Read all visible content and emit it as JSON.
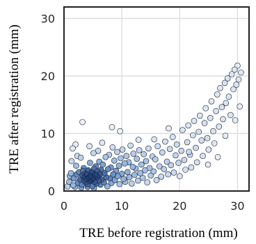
{
  "chart_data": {
    "type": "scatter",
    "title": "",
    "xlabel": "TRE before registration (mm)",
    "ylabel": "TRE after registration (mm)",
    "xlim": [
      0,
      32
    ],
    "ylim": [
      0,
      32
    ],
    "xticks": [
      0,
      10,
      20,
      30
    ],
    "yticks": [
      0,
      10,
      20,
      30
    ],
    "grid": true,
    "legend": "none",
    "marker_style": "open circles, density-shaded from white to dark blue",
    "colors": {
      "low_density": "#eef3fb",
      "mid_density": "#7ea6d8",
      "high_density": "#1d3f7a",
      "marker_edge": "#141a28",
      "frame": "#222222",
      "grid": "#dedede"
    },
    "series": [
      {
        "points": [
          [
            0.6,
            0.8
          ],
          [
            0.9,
            1.6
          ],
          [
            1.2,
            3.1
          ],
          [
            1.3,
            5.2
          ],
          [
            1.5,
            7.4
          ],
          [
            1.7,
            2.2
          ],
          [
            1.9,
            0.7
          ],
          [
            2.1,
            4.4
          ],
          [
            2.3,
            6.1
          ],
          [
            2.4,
            1.4
          ],
          [
            2.6,
            3.3
          ],
          [
            2.8,
            2.0
          ],
          [
            2.9,
            5.8
          ],
          [
            3.1,
            1.1
          ],
          [
            3.2,
            2.7
          ],
          [
            3.4,
            4.0
          ],
          [
            3.5,
            1.8
          ],
          [
            3.6,
            2.4
          ],
          [
            3.7,
            3.0
          ],
          [
            3.8,
            1.5
          ],
          [
            3.9,
            2.1
          ],
          [
            4.0,
            2.9
          ],
          [
            4.1,
            1.2
          ],
          [
            4.2,
            3.6
          ],
          [
            4.3,
            2.3
          ],
          [
            4.4,
            1.7
          ],
          [
            4.5,
            4.9
          ],
          [
            4.6,
            2.6
          ],
          [
            4.7,
            1.9
          ],
          [
            4.8,
            3.2
          ],
          [
            4.9,
            0.9
          ],
          [
            5.0,
            2.2
          ],
          [
            5.1,
            6.6
          ],
          [
            5.2,
            3.9
          ],
          [
            5.3,
            1.6
          ],
          [
            5.4,
            2.8
          ],
          [
            5.5,
            4.3
          ],
          [
            5.6,
            1.3
          ],
          [
            5.7,
            2.5
          ],
          [
            5.8,
            3.4
          ],
          [
            5.9,
            7.0
          ],
          [
            6.0,
            1.8
          ],
          [
            6.1,
            5.1
          ],
          [
            6.2,
            2.9
          ],
          [
            6.3,
            1.1
          ],
          [
            6.4,
            3.7
          ],
          [
            6.5,
            2.0
          ],
          [
            6.7,
            4.6
          ],
          [
            6.9,
            1.5
          ],
          [
            7.0,
            3.1
          ],
          [
            7.2,
            5.9
          ],
          [
            7.3,
            2.4
          ],
          [
            7.5,
            0.8
          ],
          [
            7.6,
            3.8
          ],
          [
            7.8,
            6.3
          ],
          [
            7.9,
            2.2
          ],
          [
            8.1,
            4.1
          ],
          [
            8.2,
            1.4
          ],
          [
            8.4,
            7.6
          ],
          [
            8.5,
            2.9
          ],
          [
            8.7,
            5.3
          ],
          [
            8.8,
            1.9
          ],
          [
            9.0,
            3.5
          ],
          [
            9.2,
            6.8
          ],
          [
            9.3,
            2.6
          ],
          [
            9.5,
            4.4
          ],
          [
            9.6,
            1.2
          ],
          [
            9.8,
            5.7
          ],
          [
            10.0,
            3.0
          ],
          [
            10.1,
            7.2
          ],
          [
            10.3,
            2.1
          ],
          [
            10.5,
            4.8
          ],
          [
            10.6,
            1.6
          ],
          [
            10.8,
            6.1
          ],
          [
            11.0,
            3.3
          ],
          [
            11.2,
            5.0
          ],
          [
            11.3,
            2.4
          ],
          [
            11.5,
            7.9
          ],
          [
            11.7,
            1.3
          ],
          [
            11.9,
            4.2
          ],
          [
            12.0,
            6.5
          ],
          [
            12.2,
            2.8
          ],
          [
            12.4,
            3.9
          ],
          [
            12.6,
            5.6
          ],
          [
            12.8,
            1.8
          ],
          [
            13.0,
            7.1
          ],
          [
            13.2,
            3.1
          ],
          [
            13.4,
            4.6
          ],
          [
            13.6,
            2.3
          ],
          [
            13.8,
            6.4
          ],
          [
            14.0,
            3.6
          ],
          [
            14.2,
            5.2
          ],
          [
            14.4,
            1.5
          ],
          [
            14.6,
            7.4
          ],
          [
            14.8,
            4.0
          ],
          [
            15.0,
            2.7
          ],
          [
            15.3,
            6.0
          ],
          [
            15.5,
            3.4
          ],
          [
            15.8,
            5.5
          ],
          [
            16.0,
            1.9
          ],
          [
            16.2,
            7.8
          ],
          [
            16.5,
            4.3
          ],
          [
            16.8,
            2.5
          ],
          [
            17.0,
            6.7
          ],
          [
            17.3,
            3.8
          ],
          [
            17.5,
            8.6
          ],
          [
            17.8,
            5.1
          ],
          [
            18.0,
            2.9
          ],
          [
            18.3,
            7.3
          ],
          [
            18.5,
            4.5
          ],
          [
            18.8,
            9.4
          ],
          [
            19.0,
            3.2
          ],
          [
            19.3,
            6.2
          ],
          [
            19.5,
            8.1
          ],
          [
            19.8,
            4.9
          ],
          [
            20.0,
            2.6
          ],
          [
            20.3,
            7.0
          ],
          [
            20.5,
            10.6
          ],
          [
            20.8,
            5.4
          ],
          [
            21.0,
            3.7
          ],
          [
            21.3,
            8.5
          ],
          [
            21.5,
            11.4
          ],
          [
            21.8,
            6.3
          ],
          [
            22.0,
            4.1
          ],
          [
            22.3,
            9.7
          ],
          [
            22.5,
            12.2
          ],
          [
            22.8,
            7.5
          ],
          [
            23.0,
            5.0
          ],
          [
            23.3,
            10.3
          ],
          [
            23.5,
            13.1
          ],
          [
            23.8,
            8.8
          ],
          [
            24.0,
            6.1
          ],
          [
            24.3,
            11.8
          ],
          [
            24.5,
            14.4
          ],
          [
            24.8,
            9.2
          ],
          [
            25.0,
            7.2
          ],
          [
            25.3,
            12.7
          ],
          [
            25.5,
            15.6
          ],
          [
            25.8,
            10.4
          ],
          [
            26.0,
            8.3
          ],
          [
            26.3,
            13.9
          ],
          [
            26.5,
            16.8
          ],
          [
            26.8,
            11.2
          ],
          [
            27.0,
            17.9
          ],
          [
            27.3,
            14.6
          ],
          [
            27.5,
            12.5
          ],
          [
            27.8,
            18.8
          ],
          [
            28.0,
            15.3
          ],
          [
            28.3,
            19.6
          ],
          [
            28.5,
            16.4
          ],
          [
            28.8,
            13.2
          ],
          [
            29.0,
            20.3
          ],
          [
            29.3,
            17.7
          ],
          [
            29.5,
            21.1
          ],
          [
            29.8,
            18.5
          ],
          [
            30.0,
            21.8
          ],
          [
            30.2,
            19.4
          ],
          [
            30.4,
            14.7
          ],
          [
            30.6,
            20.6
          ],
          [
            3.2,
            12.0
          ],
          [
            8.3,
            11.1
          ],
          [
            9.7,
            10.4
          ],
          [
            2.0,
            8.1
          ],
          [
            4.4,
            7.8
          ],
          [
            6.6,
            8.4
          ],
          [
            12.9,
            8.9
          ],
          [
            15.6,
            9.0
          ],
          [
            18.1,
            10.9
          ],
          [
            21.6,
            6.8
          ],
          [
            24.9,
            4.6
          ],
          [
            26.6,
            5.9
          ],
          [
            27.9,
            9.6
          ],
          [
            29.6,
            12.3
          ],
          [
            1.0,
            2.6
          ],
          [
            1.6,
            1.0
          ],
          [
            2.2,
            2.9
          ],
          [
            3.0,
            0.6
          ],
          [
            3.3,
            3.5
          ],
          [
            4.1,
            0.7
          ],
          [
            5.2,
            0.5
          ]
        ]
      }
    ]
  }
}
